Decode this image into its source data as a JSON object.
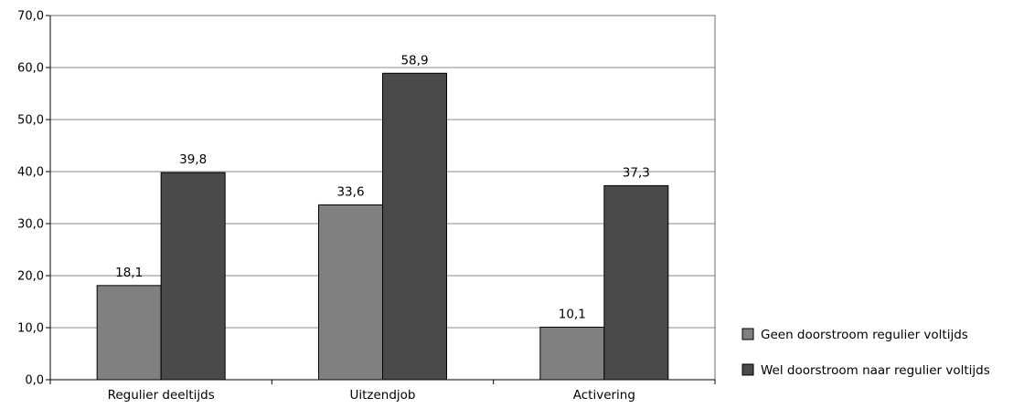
{
  "chart_data": {
    "type": "bar",
    "categories": [
      "Regulier deeltijds",
      "Uitzendjob",
      "Activering"
    ],
    "series": [
      {
        "name": "Geen doorstroom regulier voltijds",
        "values": [
          18.1,
          33.6,
          10.1
        ],
        "labels": [
          "18,1",
          "33,6",
          "10,1"
        ],
        "color": "#808080"
      },
      {
        "name": "Wel doorstroom naar regulier voltijds",
        "values": [
          39.8,
          58.9,
          37.3
        ],
        "labels": [
          "39,8",
          "58,9",
          "37,3"
        ],
        "color": "#4a4a4a"
      }
    ],
    "yticks": [
      "0,0",
      "10,0",
      "20,0",
      "30,0",
      "40,0",
      "50,0",
      "60,0",
      "70,0"
    ],
    "ylim": [
      0,
      70
    ],
    "ystep": 10,
    "grid": true,
    "legend": "right-bottom",
    "title": "",
    "xlabel": "",
    "ylabel": ""
  }
}
